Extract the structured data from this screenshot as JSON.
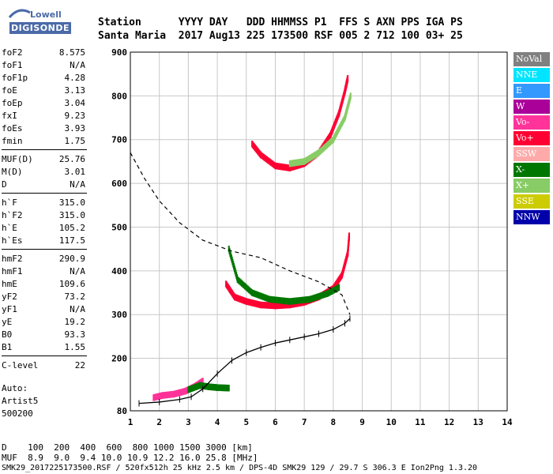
{
  "logo": {
    "line1": "Lowell",
    "line2": "DIGISONDE"
  },
  "header": {
    "line1": "Station      YYYY DAY   DDD HHMMSS P1  FFS S AXN PPS IGA PS",
    "line2": "Santa Maria  2017 Aug13 225 173500 RSF 005 2 712 100 03+ 25"
  },
  "params": [
    {
      "label": "foF2",
      "value": "8.575"
    },
    {
      "label": "foF1",
      "value": "N/A"
    },
    {
      "label": "foF1p",
      "value": "4.28"
    },
    {
      "label": "foE",
      "value": "3.13"
    },
    {
      "label": "foEp",
      "value": "3.04"
    },
    {
      "label": "fxI",
      "value": "9.23"
    },
    {
      "label": "foEs",
      "value": "3.93"
    },
    {
      "label": "fmin",
      "value": "1.75"
    },
    {
      "label": "MUF(D)",
      "value": "25.76"
    },
    {
      "label": "M(D)",
      "value": "3.01"
    },
    {
      "label": "D",
      "value": "N/A"
    },
    {
      "label": "h`F",
      "value": "315.0"
    },
    {
      "label": "h`F2",
      "value": "315.0"
    },
    {
      "label": "h`E",
      "value": "105.2"
    },
    {
      "label": "h`Es",
      "value": "117.5"
    },
    {
      "label": "hmF2",
      "value": "290.9"
    },
    {
      "label": "hmF1",
      "value": "N/A"
    },
    {
      "label": "hmE",
      "value": "109.6"
    },
    {
      "label": "yF2",
      "value": "73.2"
    },
    {
      "label": "yF1",
      "value": "N/A"
    },
    {
      "label": "yE",
      "value": "19.2"
    },
    {
      "label": "B0",
      "value": "93.3"
    },
    {
      "label": "B1",
      "value": "1.55"
    },
    {
      "label": "C-level",
      "value": "22"
    }
  ],
  "auto": {
    "line1": "Auto:",
    "line2": "Artist5",
    "line3": "500200"
  },
  "legend": [
    {
      "label": "NoVal",
      "color": "#808080"
    },
    {
      "label": "NNE",
      "color": "#00e5ff"
    },
    {
      "label": "E",
      "color": "#3399ff"
    },
    {
      "label": "W",
      "color": "#aa0099"
    },
    {
      "label": "Vo-",
      "color": "#ff3399"
    },
    {
      "label": "Vo+",
      "color": "#ff0033"
    },
    {
      "label": "SSW",
      "color": "#ffaaaa"
    },
    {
      "label": "X-",
      "color": "#007700"
    },
    {
      "label": "X+",
      "color": "#88cc66"
    },
    {
      "label": "SSE",
      "color": "#cccc00"
    },
    {
      "label": "NNW",
      "color": "#0000aa"
    }
  ],
  "footer": {
    "line1": "D    100  200  400  600  800 1000 1500 3000 [km]",
    "line2": "MUF  8.9  9.0  9.4 10.0 10.9 12.2 16.0 25.8 [MHz]",
    "line3": "SMK29_2017225173500.RSF / 520fx512h 25 kHz 2.5 km / DPS-4D SMK29 129 / 29.7 S 306.3 E Ion2Png 1.3.20"
  },
  "chart_data": {
    "type": "scatter",
    "xlim": [
      1,
      14
    ],
    "ylim": [
      80,
      900
    ],
    "xticks": [
      1,
      2,
      3,
      4,
      5,
      6,
      7,
      8,
      9,
      10,
      11,
      12,
      13,
      14
    ],
    "yticks": [
      80,
      200,
      300,
      400,
      500,
      600,
      700,
      800,
      900
    ],
    "grid": true,
    "series": [
      {
        "name": "Vo+",
        "color": "#ff0033",
        "points": [
          [
            4.3,
            370
          ],
          [
            4.6,
            340
          ],
          [
            5.0,
            330
          ],
          [
            5.5,
            322
          ],
          [
            6.0,
            320
          ],
          [
            6.5,
            322
          ],
          [
            7.0,
            328
          ],
          [
            7.5,
            340
          ],
          [
            8.0,
            360
          ],
          [
            8.3,
            390
          ],
          [
            8.5,
            440
          ],
          [
            8.55,
            480
          ]
        ]
      },
      {
        "name": "X-",
        "color": "#007700",
        "points": [
          [
            4.4,
            450
          ],
          [
            4.7,
            380
          ],
          [
            5.2,
            350
          ],
          [
            5.8,
            335
          ],
          [
            6.5,
            330
          ],
          [
            7.2,
            335
          ],
          [
            7.8,
            348
          ],
          [
            8.2,
            362
          ]
        ]
      },
      {
        "name": "Vo+",
        "color": "#ff0033",
        "points": [
          [
            5.2,
            690
          ],
          [
            5.5,
            665
          ],
          [
            6.0,
            640
          ],
          [
            6.5,
            635
          ],
          [
            7.0,
            645
          ],
          [
            7.5,
            670
          ],
          [
            7.9,
            710
          ],
          [
            8.2,
            760
          ],
          [
            8.4,
            810
          ],
          [
            8.5,
            840
          ]
        ]
      },
      {
        "name": "X+",
        "color": "#88cc66",
        "points": [
          [
            6.5,
            645
          ],
          [
            7.0,
            650
          ],
          [
            7.5,
            670
          ],
          [
            8.0,
            700
          ],
          [
            8.4,
            750
          ],
          [
            8.6,
            800
          ]
        ]
      },
      {
        "name": "Vo-",
        "color": "#ff3399",
        "points": [
          [
            1.8,
            110
          ],
          [
            2.1,
            115
          ],
          [
            2.5,
            118
          ],
          [
            2.9,
            125
          ],
          [
            3.2,
            135
          ],
          [
            3.5,
            148
          ]
        ]
      },
      {
        "name": "X-",
        "color": "#007700",
        "points": [
          [
            3.0,
            128
          ],
          [
            3.4,
            138
          ],
          [
            3.7,
            135
          ],
          [
            4.0,
            133
          ],
          [
            4.4,
            132
          ]
        ]
      }
    ],
    "profile": [
      [
        1.3,
        97
      ],
      [
        2.0,
        100
      ],
      [
        2.7,
        106
      ],
      [
        3.1,
        112
      ],
      [
        3.5,
        130
      ],
      [
        4.0,
        165
      ],
      [
        4.5,
        195
      ],
      [
        5.0,
        213
      ],
      [
        5.5,
        225
      ],
      [
        6.0,
        235
      ],
      [
        6.5,
        242
      ],
      [
        7.0,
        249
      ],
      [
        7.5,
        256
      ],
      [
        8.0,
        266
      ],
      [
        8.4,
        280
      ],
      [
        8.575,
        290.9
      ]
    ],
    "profile_dashed": [
      [
        1.0,
        670
      ],
      [
        1.5,
        610
      ],
      [
        2.0,
        560
      ],
      [
        2.7,
        510
      ],
      [
        3.5,
        470
      ],
      [
        4.5,
        445
      ],
      [
        5.5,
        430
      ],
      [
        6.5,
        400
      ],
      [
        7.5,
        375
      ],
      [
        8.3,
        345
      ],
      [
        8.575,
        300
      ]
    ]
  }
}
